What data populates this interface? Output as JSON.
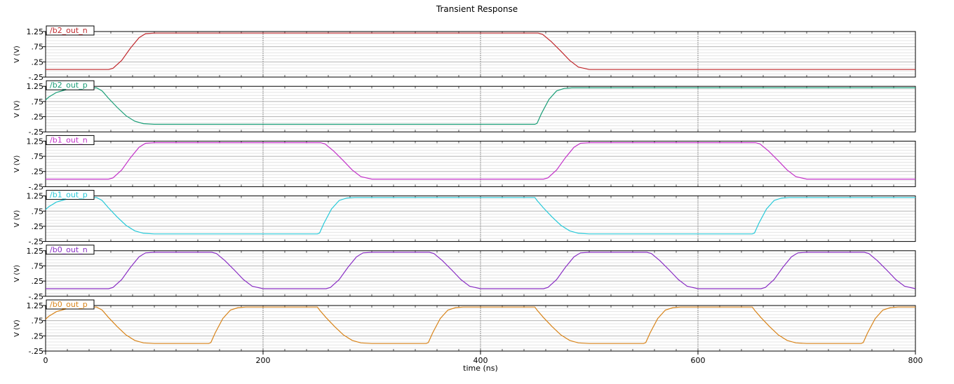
{
  "chart_data": {
    "type": "line",
    "title": "Transient Response",
    "xlabel": "time (ns)",
    "ylabel": "V (V)",
    "xlim": [
      0,
      800
    ],
    "ylim": [
      -0.25,
      1.25
    ],
    "xticks": [
      "0",
      "200",
      "400",
      "600",
      "800"
    ],
    "yticks": [
      "1.25",
      ".75",
      ".25",
      "-.25"
    ],
    "grid": true,
    "legend": "top-left label per panel",
    "series": [
      {
        "name": "/b2_out_n",
        "color": "#c0282d",
        "x": [
          0,
          58,
          62,
          70,
          78,
          86,
          92,
          100,
          453,
          457,
          465,
          474,
          482,
          490,
          500,
          800
        ],
        "y": [
          0.0,
          0.0,
          0.04,
          0.3,
          0.7,
          1.05,
          1.18,
          1.2,
          1.2,
          1.16,
          0.92,
          0.6,
          0.3,
          0.08,
          0.0,
          0.0
        ]
      },
      {
        "name": "/b2_out_p",
        "color": "#1a9e77",
        "x": [
          0,
          3,
          10,
          20,
          30,
          40,
          47,
          52,
          58,
          66,
          74,
          82,
          90,
          100,
          450,
          452,
          456,
          463,
          470,
          477,
          484,
          492,
          800
        ],
        "y": [
          0.8,
          0.9,
          1.05,
          1.15,
          1.19,
          1.2,
          1.2,
          1.1,
          0.85,
          0.55,
          0.28,
          0.1,
          0.02,
          0.0,
          0.0,
          0.03,
          0.35,
          0.82,
          1.1,
          1.18,
          1.2,
          1.2,
          1.2
        ]
      },
      {
        "name": "/b1_out_n",
        "color": "#c331c9",
        "x": [
          0,
          58,
          62,
          70,
          78,
          86,
          92,
          100,
          253,
          257,
          265,
          274,
          282,
          290,
          300,
          458,
          462,
          470,
          478,
          486,
          492,
          500,
          653,
          657,
          665,
          674,
          682,
          690,
          700,
          800
        ],
        "y": [
          0.0,
          0.0,
          0.04,
          0.3,
          0.7,
          1.05,
          1.18,
          1.2,
          1.2,
          1.16,
          0.92,
          0.6,
          0.3,
          0.08,
          0.0,
          0.0,
          0.04,
          0.3,
          0.7,
          1.05,
          1.18,
          1.2,
          1.2,
          1.16,
          0.92,
          0.6,
          0.3,
          0.08,
          0.0,
          0.0
        ]
      },
      {
        "name": "/b1_out_p",
        "color": "#27c9d8",
        "x": [
          0,
          3,
          10,
          20,
          30,
          40,
          47,
          52,
          58,
          66,
          74,
          82,
          90,
          100,
          250,
          252,
          256,
          263,
          270,
          277,
          284,
          292,
          450,
          452,
          458,
          466,
          474,
          482,
          490,
          500,
          650,
          652,
          656,
          663,
          670,
          677,
          684,
          692,
          800
        ],
        "y": [
          0.8,
          0.9,
          1.05,
          1.15,
          1.19,
          1.2,
          1.2,
          1.1,
          0.85,
          0.55,
          0.28,
          0.1,
          0.02,
          0.0,
          0.0,
          0.03,
          0.35,
          0.82,
          1.1,
          1.18,
          1.2,
          1.2,
          1.2,
          1.1,
          0.85,
          0.55,
          0.28,
          0.1,
          0.02,
          0.0,
          0.0,
          0.03,
          0.35,
          0.82,
          1.1,
          1.18,
          1.2,
          1.2,
          1.2
        ]
      },
      {
        "name": "/b0_out_n",
        "color": "#8a2fc4",
        "x": [
          0,
          58,
          62,
          70,
          78,
          86,
          92,
          100,
          153,
          157,
          165,
          174,
          182,
          190,
          200,
          258,
          262,
          270,
          278,
          286,
          292,
          300,
          353,
          357,
          365,
          374,
          382,
          390,
          400,
          458,
          462,
          470,
          478,
          486,
          492,
          500,
          553,
          557,
          565,
          574,
          582,
          590,
          600,
          658,
          662,
          670,
          678,
          686,
          692,
          700,
          753,
          757,
          765,
          774,
          782,
          790,
          800
        ],
        "y": [
          0.0,
          0.0,
          0.04,
          0.3,
          0.7,
          1.05,
          1.18,
          1.2,
          1.2,
          1.16,
          0.92,
          0.6,
          0.3,
          0.08,
          0.0,
          0.0,
          0.04,
          0.3,
          0.7,
          1.05,
          1.18,
          1.2,
          1.2,
          1.16,
          0.92,
          0.6,
          0.3,
          0.08,
          0.0,
          0.0,
          0.04,
          0.3,
          0.7,
          1.05,
          1.18,
          1.2,
          1.2,
          1.16,
          0.92,
          0.6,
          0.3,
          0.08,
          0.0,
          0.0,
          0.04,
          0.3,
          0.7,
          1.05,
          1.18,
          1.2,
          1.2,
          1.16,
          0.92,
          0.6,
          0.3,
          0.08,
          0.0
        ]
      },
      {
        "name": "/b0_out_p",
        "color": "#d8841a",
        "x": [
          0,
          3,
          10,
          20,
          30,
          40,
          47,
          52,
          58,
          66,
          74,
          82,
          90,
          100,
          150,
          152,
          156,
          163,
          170,
          177,
          184,
          192,
          250,
          252,
          258,
          266,
          274,
          282,
          290,
          300,
          350,
          352,
          356,
          363,
          370,
          377,
          384,
          392,
          450,
          452,
          458,
          466,
          474,
          482,
          490,
          500,
          550,
          552,
          556,
          563,
          570,
          577,
          584,
          592,
          650,
          652,
          658,
          666,
          674,
          682,
          690,
          700,
          750,
          752,
          756,
          763,
          770,
          777,
          784,
          792,
          800
        ],
        "y": [
          0.8,
          0.9,
          1.05,
          1.15,
          1.19,
          1.2,
          1.2,
          1.1,
          0.85,
          0.55,
          0.28,
          0.1,
          0.02,
          0.0,
          0.0,
          0.03,
          0.35,
          0.82,
          1.1,
          1.18,
          1.2,
          1.2,
          1.2,
          1.1,
          0.85,
          0.55,
          0.28,
          0.1,
          0.02,
          0.0,
          0.0,
          0.03,
          0.35,
          0.82,
          1.1,
          1.18,
          1.2,
          1.2,
          1.2,
          1.1,
          0.85,
          0.55,
          0.28,
          0.1,
          0.02,
          0.0,
          0.0,
          0.03,
          0.35,
          0.82,
          1.1,
          1.18,
          1.2,
          1.2,
          1.2,
          1.1,
          0.85,
          0.55,
          0.28,
          0.1,
          0.02,
          0.0,
          0.0,
          0.03,
          0.35,
          0.82,
          1.1,
          1.18,
          1.2,
          1.2,
          1.2
        ]
      }
    ]
  }
}
